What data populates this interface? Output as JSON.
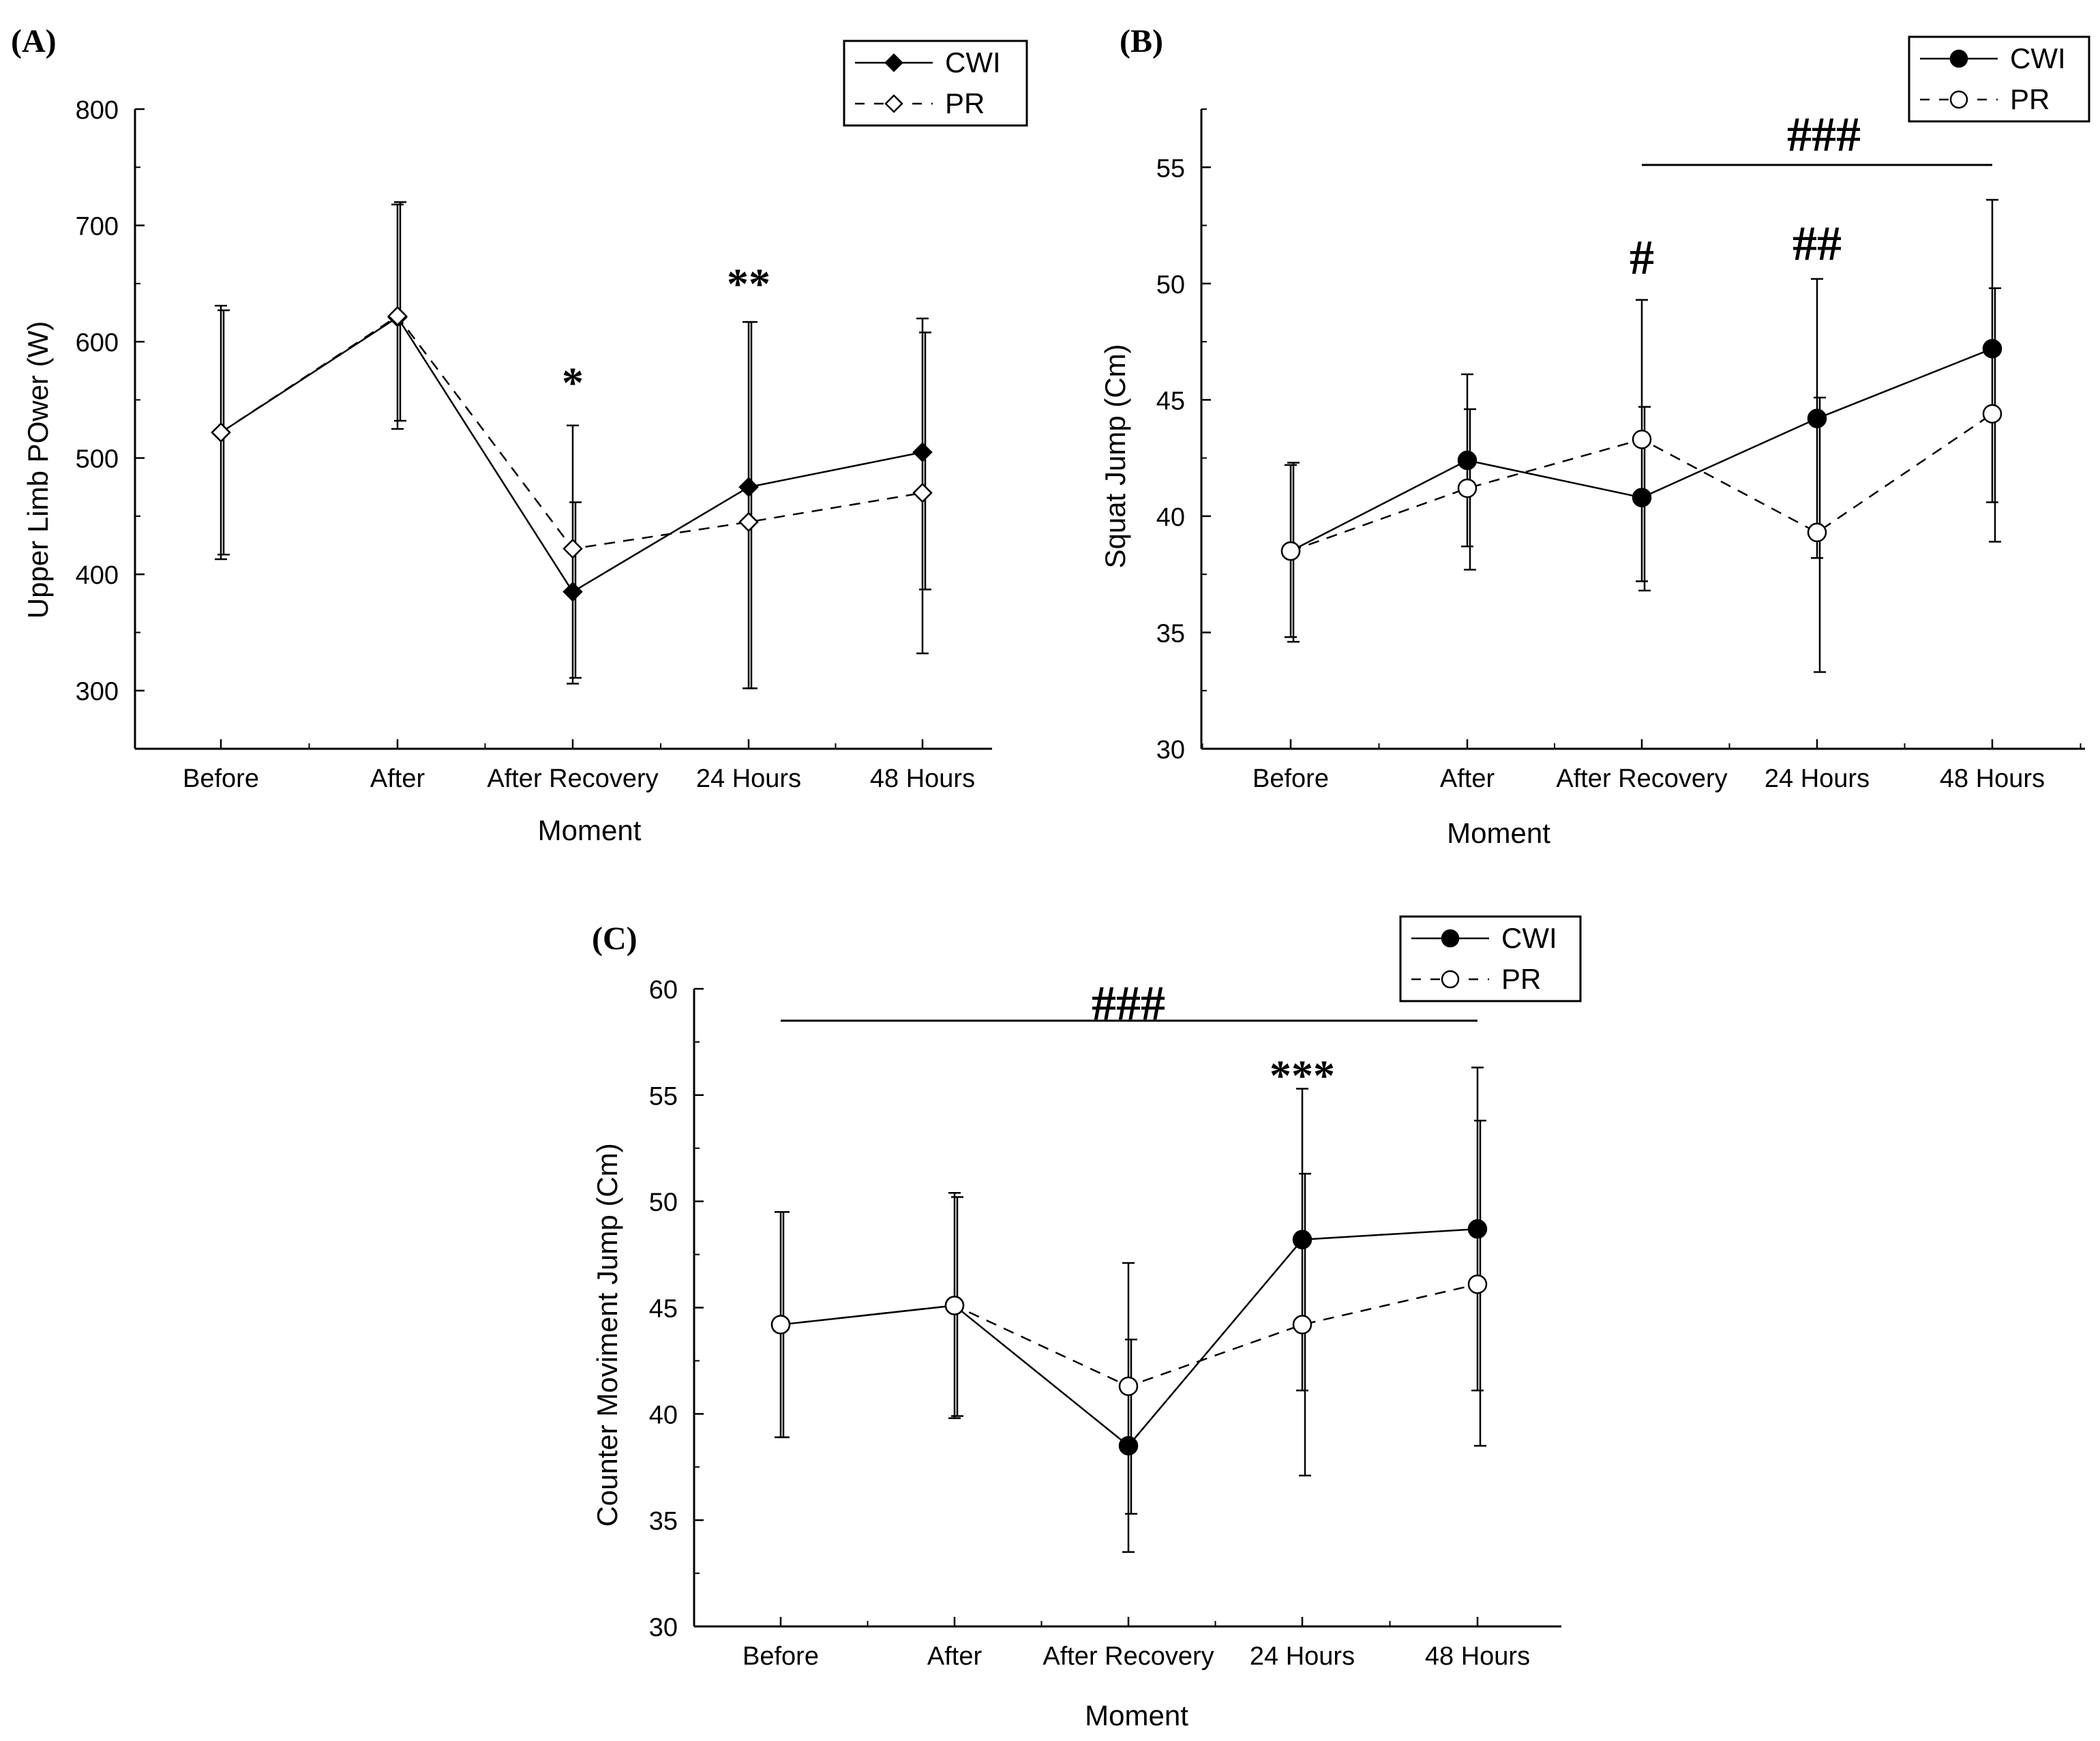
{
  "chart_data": [
    {
      "panel": "(A)",
      "type": "line",
      "ylabel": "Upper Limb POwer (W)",
      "xlabel": "Moment",
      "categories": [
        "Before",
        "After",
        "After Recovery",
        "24 Hours",
        "48 Hours"
      ],
      "ylim": [
        250,
        800
      ],
      "yticks": [
        300,
        400,
        500,
        600,
        700,
        800
      ],
      "series": [
        {
          "name": "CWI",
          "marker": "filled-diamond",
          "line": "solid",
          "values": [
            522,
            621,
            385,
            475,
            505
          ],
          "upper": [
            631,
            718,
            528,
            617,
            620
          ],
          "lower": [
            413,
            525,
            306,
            302,
            332
          ]
        },
        {
          "name": "PR",
          "marker": "open-diamond",
          "line": "dashed",
          "values": [
            522,
            622,
            422,
            445,
            470
          ],
          "upper": [
            627,
            720,
            462,
            617,
            608
          ],
          "lower": [
            417,
            532,
            311,
            302,
            387
          ]
        }
      ],
      "annotations": [
        {
          "text": "*",
          "x": "After Recovery",
          "y": 570
        },
        {
          "text": "**",
          "x": "24 Hours",
          "y": 655
        }
      ],
      "legend": {
        "position": "top-right",
        "entries": [
          "CWI",
          "PR"
        ]
      }
    },
    {
      "panel": "(B)",
      "type": "line",
      "ylabel": "Squat Jump (Cm)",
      "xlabel": "Moment",
      "categories": [
        "Before",
        "After",
        "After Recovery",
        "24 Hours",
        "48 Hours"
      ],
      "ylim": [
        30,
        57.5
      ],
      "yticks": [
        30,
        35,
        40,
        45,
        50,
        55
      ],
      "series": [
        {
          "name": "CWI",
          "marker": "filled-circle",
          "line": "solid",
          "values": [
            38.5,
            42.4,
            40.8,
            44.2,
            47.2
          ],
          "upper": [
            42.2,
            46.1,
            49.3,
            50.2,
            53.6
          ],
          "lower": [
            34.8,
            38.7,
            37.2,
            38.2,
            40.6
          ]
        },
        {
          "name": "PR",
          "marker": "open-circle",
          "line": "dashed",
          "values": [
            38.5,
            41.2,
            43.3,
            39.3,
            44.4
          ],
          "upper": [
            42.3,
            44.6,
            44.7,
            45.1,
            49.8
          ],
          "lower": [
            34.6,
            37.7,
            36.8,
            33.3,
            38.9
          ]
        }
      ],
      "annotations": [
        {
          "text": "#",
          "x": "After Recovery",
          "y": 51.0
        },
        {
          "text": "##",
          "x": "24 Hours",
          "y": 51.6
        },
        {
          "text": "###",
          "x": "24 Hours",
          "y": 56.3
        }
      ],
      "bracket": {
        "from": "After Recovery",
        "to": "48 Hours",
        "y": 55.1
      },
      "legend": {
        "position": "top-right",
        "entries": [
          "CWI",
          "PR"
        ]
      }
    },
    {
      "panel": "(C)",
      "type": "line",
      "ylabel": "Counter Moviment Jump (Cm)",
      "xlabel": "Moment",
      "categories": [
        "Before",
        "After",
        "After Recovery",
        "24 Hours",
        "48 Hours"
      ],
      "ylim": [
        30,
        60
      ],
      "yticks": [
        30,
        35,
        40,
        45,
        50,
        55,
        60
      ],
      "series": [
        {
          "name": "CWI",
          "marker": "filled-circle",
          "line": "solid",
          "values": [
            44.2,
            45.1,
            38.5,
            48.2,
            48.7
          ],
          "upper": [
            49.5,
            50.4,
            47.1,
            55.3,
            56.3
          ],
          "lower": [
            38.9,
            39.8,
            33.5,
            41.1,
            41.1
          ]
        },
        {
          "name": "PR",
          "marker": "open-circle",
          "line": "dashed",
          "values": [
            44.2,
            45.1,
            41.3,
            44.2,
            46.1
          ],
          "upper": [
            49.5,
            50.2,
            43.5,
            51.3,
            53.8
          ],
          "lower": [
            38.9,
            39.9,
            35.3,
            37.1,
            38.5
          ]
        }
      ],
      "annotations": [
        {
          "text": "***",
          "x": "24 Hours",
          "y": 56.2
        },
        {
          "text": "###",
          "x": "After Recovery",
          "y": 59.2
        }
      ],
      "bracket": {
        "from": "Before",
        "to": "48 Hours",
        "y": 58.5
      },
      "legend": {
        "position": "top-right",
        "entries": [
          "CWI",
          "PR"
        ]
      }
    }
  ]
}
